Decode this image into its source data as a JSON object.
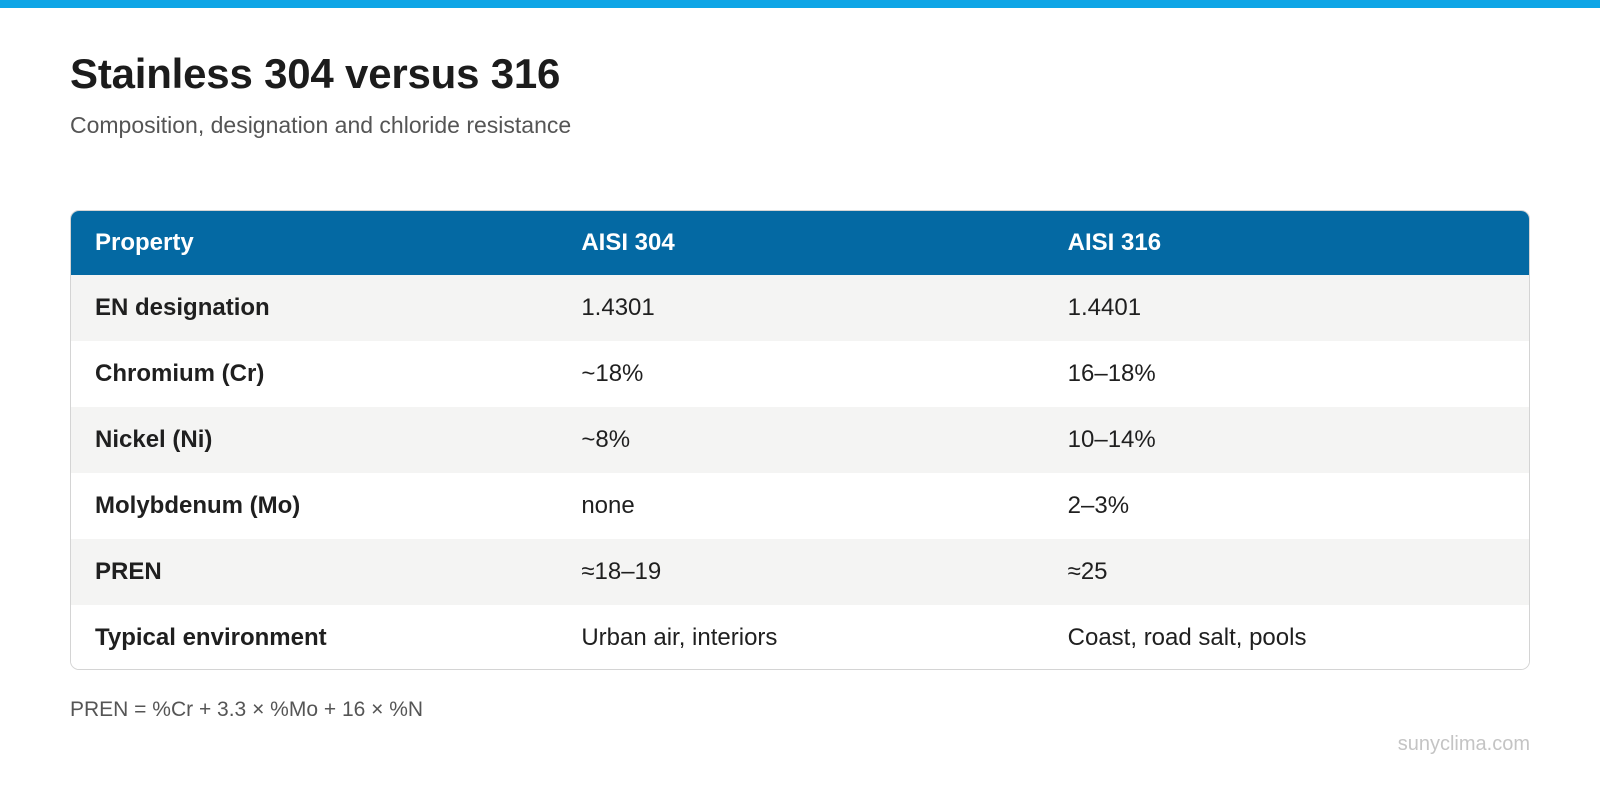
{
  "header": {
    "title": "Stainless 304 versus 316",
    "subtitle": "Composition, designation and chloride resistance"
  },
  "colors": {
    "accent_bar": "#0ea5e6",
    "table_header": "#0469a3",
    "row_alt": "#f4f4f3"
  },
  "table": {
    "columns": [
      "Property",
      "AISI 304",
      "AISI 316"
    ],
    "rows": [
      {
        "property": "EN designation",
        "aisi304": "1.4301",
        "aisi316": "1.4401"
      },
      {
        "property": "Chromium (Cr)",
        "aisi304": "~18%",
        "aisi316": "16–18%"
      },
      {
        "property": "Nickel (Ni)",
        "aisi304": "~8%",
        "aisi316": "10–14%"
      },
      {
        "property": "Molybdenum (Mo)",
        "aisi304": "none",
        "aisi316": "2–3%"
      },
      {
        "property": "PREN",
        "aisi304": "≈18–19",
        "aisi316": "≈25"
      },
      {
        "property": "Typical environment",
        "aisi304": "Urban air, interiors",
        "aisi316": "Coast, road salt, pools"
      }
    ]
  },
  "footer": {
    "note": "PREN = %Cr + 3.3 × %Mo + 16 × %N",
    "watermark": "sunyclima.com"
  }
}
